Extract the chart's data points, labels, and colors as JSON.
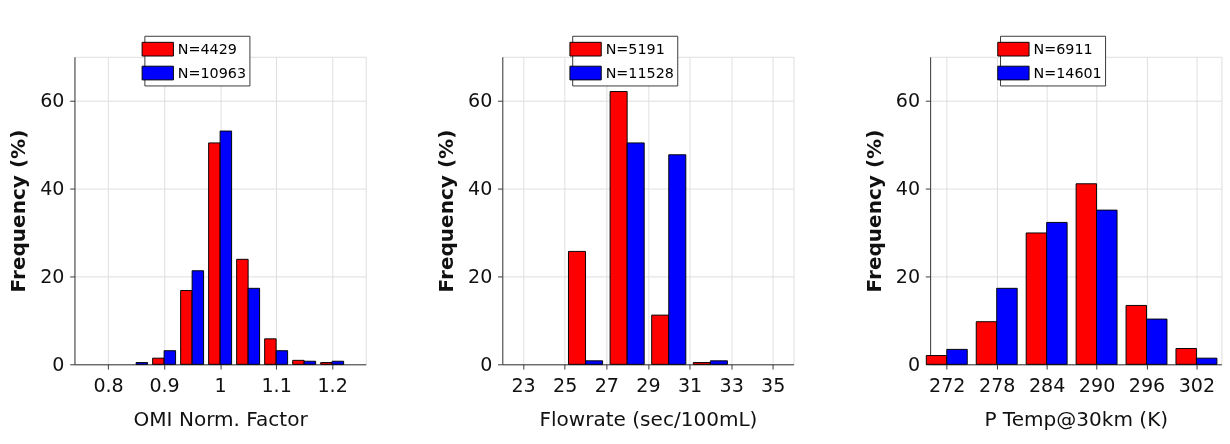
{
  "chart_data": [
    {
      "type": "bar",
      "xlabel": "OMI Norm. Factor",
      "ylabel": "Frequency (%)",
      "x": [
        0.85,
        0.9,
        0.95,
        1.0,
        1.05,
        1.1,
        1.15,
        1.2
      ],
      "xlim": [
        0.74,
        1.26
      ],
      "xticks": [
        0.8,
        0.9,
        1,
        1.1,
        1.2
      ],
      "ylim": [
        0,
        70
      ],
      "yticks": [
        0,
        20,
        40,
        60
      ],
      "grid": true,
      "legend": "top",
      "series": [
        {
          "name": "N=4429",
          "color": "#ff0000",
          "values": [
            null,
            1.4,
            16.8,
            50.4,
            23.9,
            5.8,
            0.9,
            0.4
          ]
        },
        {
          "name": "N=10963",
          "color": "#0000ff",
          "values": [
            0.4,
            3.1,
            21.3,
            53.1,
            17.3,
            3.1,
            0.7,
            0.7
          ]
        }
      ]
    },
    {
      "type": "bar",
      "xlabel": "Flowrate (sec/100mL)",
      "ylabel": "Frequency (%)",
      "x": [
        26,
        28,
        30,
        32
      ],
      "xlim": [
        22,
        36
      ],
      "xticks": [
        23,
        25,
        27,
        29,
        31,
        33,
        35
      ],
      "ylim": [
        0,
        70
      ],
      "yticks": [
        0,
        20,
        40,
        60
      ],
      "grid": true,
      "legend": "top",
      "series": [
        {
          "name": "N=5191",
          "color": "#ff0000",
          "values": [
            25.7,
            62.1,
            11.2,
            0.4
          ]
        },
        {
          "name": "N=11528",
          "color": "#0000ff",
          "values": [
            0.8,
            50.4,
            47.7,
            0.8
          ]
        }
      ]
    },
    {
      "type": "bar",
      "xlabel": "P Temp@30km (K)",
      "ylabel": "Frequency (%)",
      "x": [
        272,
        278,
        284,
        290,
        296,
        302
      ],
      "xlim": [
        270,
        305
      ],
      "xticks": [
        272,
        278,
        284,
        290,
        296,
        302
      ],
      "ylim": [
        0,
        70
      ],
      "yticks": [
        0,
        20,
        40,
        60
      ],
      "grid": true,
      "legend": "top",
      "series": [
        {
          "name": "N=6911",
          "color": "#ff0000",
          "values": [
            2.0,
            9.7,
            29.9,
            41.1,
            13.4,
            3.6
          ]
        },
        {
          "name": "N=14601",
          "color": "#0000ff",
          "values": [
            3.4,
            17.3,
            32.3,
            35.1,
            10.3,
            1.4
          ]
        }
      ]
    }
  ]
}
